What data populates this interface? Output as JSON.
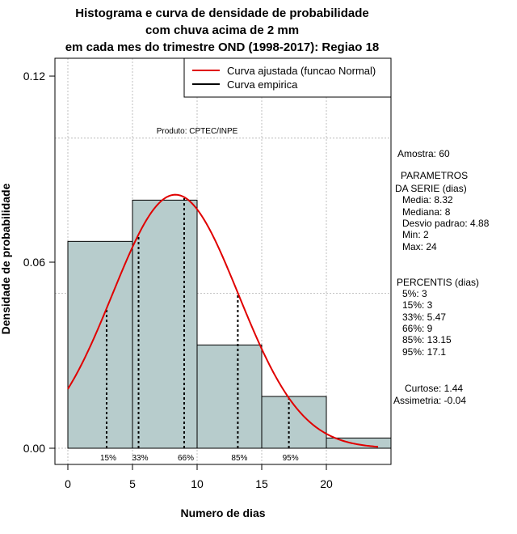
{
  "chart_data": {
    "type": "bar",
    "title": [
      "Histograma e curva de densidade de probabilidade",
      "com chuva acima de 2 mm",
      "em cada mes do trimestre OND (1998-2017): Regiao 18"
    ],
    "xlabel": "Numero de dias",
    "ylabel": "Densidade de probabilidade",
    "xlim": [
      -1,
      25
    ],
    "ylim": [
      -0.005,
      0.12
    ],
    "x_ticks": [
      0,
      5,
      10,
      15,
      20
    ],
    "x_tick_labels": [
      "0",
      "5",
      "10",
      "15",
      "20"
    ],
    "y_ticks": [
      0.0,
      0.06,
      0.12
    ],
    "y_tick_labels": [
      "0.00",
      "0.06",
      "0.12"
    ],
    "grid": true,
    "bins": [
      {
        "from": 0,
        "to": 5,
        "density": 0.0667
      },
      {
        "from": 5,
        "to": 10,
        "density": 0.08
      },
      {
        "from": 10,
        "to": 15,
        "density": 0.0333
      },
      {
        "from": 15,
        "to": 20,
        "density": 0.0167
      },
      {
        "from": 20,
        "to": 25,
        "density": 0.0033
      }
    ],
    "fitted_curve": {
      "name": "Curva ajustada (funcao Normal)",
      "mean": 8.32,
      "sd": 4.88,
      "x_range": [
        0,
        24
      ],
      "color": "#e00000"
    },
    "empirical_curve": {
      "name": "Curva empirica",
      "color": "#000000"
    },
    "legend": [
      "Curva ajustada (funcao Normal)",
      "Curva empirica"
    ],
    "legend_position": "top-right",
    "percentile_lines": [
      {
        "label": "5%",
        "value": 3
      },
      {
        "label": "15%",
        "value": 3
      },
      {
        "label": "33%",
        "value": 5.47
      },
      {
        "label": "66%",
        "value": 9
      },
      {
        "label": "85%",
        "value": 13.15
      },
      {
        "label": "95%",
        "value": 17.1
      }
    ],
    "percentile_label_text": [
      "15%",
      "33%",
      "66%",
      "85%",
      "95%"
    ],
    "credit": "Produto: CPTEC/INPE",
    "side_panel": {
      "amostra": "Amostra: 60",
      "param_header_1": "PARAMETROS",
      "param_header_2": "DA SERIE (dias)",
      "params": [
        "Media: 8.32",
        "Mediana: 8",
        "Desvio padrao: 4.88",
        "Min: 2",
        "Max: 24"
      ],
      "percentis_header": "PERCENTIS (dias)",
      "percentis": [
        "5%: 3",
        "15%: 3",
        "33%: 5.47",
        "66%: 9",
        "85%: 13.15",
        "95%: 17.1"
      ],
      "curtose": "Curtose: 1.44",
      "assimetria": "Assimetria: -0.04"
    },
    "colors": {
      "bar_fill": "#b7cccc",
      "bar_stroke": "#000000",
      "grid": "#b0b0b0",
      "fit": "#e00000"
    }
  }
}
